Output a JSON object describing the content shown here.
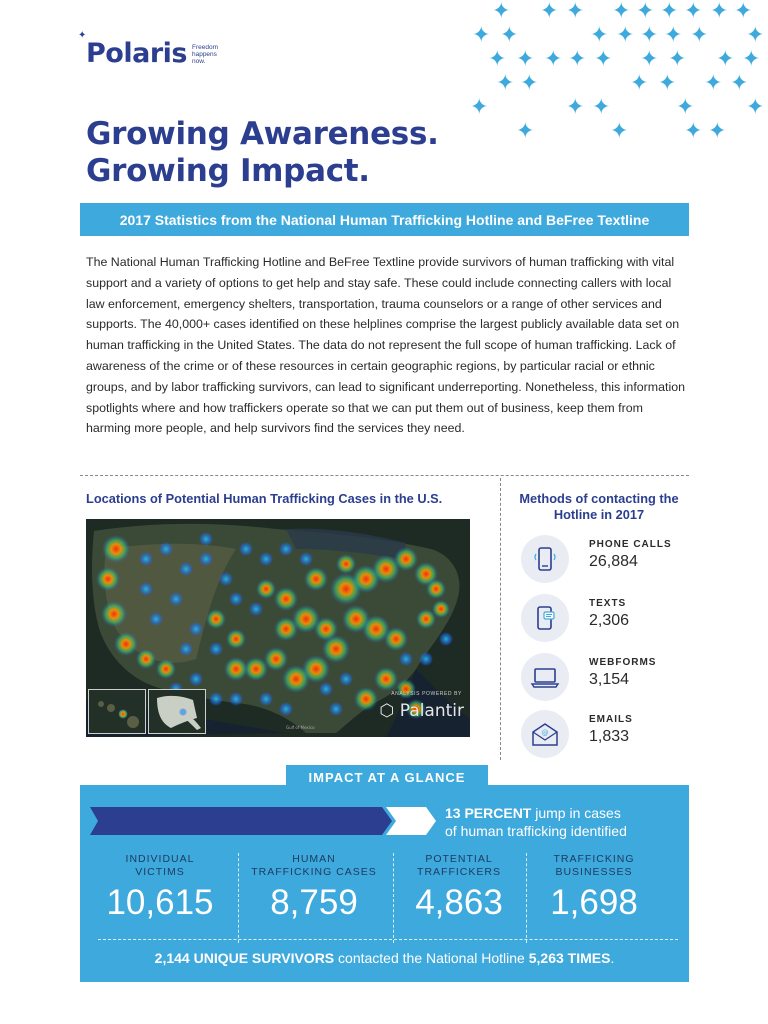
{
  "logo": {
    "word": "Polaris",
    "tagline": "Freedom happens now."
  },
  "headline": {
    "line1": "Growing Awareness.",
    "line2": "Growing Impact."
  },
  "banner": "2017 Statistics from the National Human Trafficking Hotline and BeFree Textline",
  "intro": "The National Human Trafficking Hotline and BeFree Textline provide survivors of human trafficking with vital support and a variety of options to get help and stay safe. These could include connecting callers with local law enforcement, emergency shelters, transportation, trauma counselors or a range of other services and supports. The 40,000+ cases identified on these helplines comprise the largest publicly available data set on human trafficking in the United States. The data do not represent the full scope of human trafficking. Lack of awareness of the crime or of these resources in certain geographic regions, by particular racial or ethnic groups, and by labor trafficking survivors, can lead to significant underreporting. Nonetheless, this information spotlights where and how traffickers operate so that we can put them out of business, keep them from harming more people, and help survivors find the services they need.",
  "map": {
    "title": "Locations of Potential Human Trafficking Cases in the U.S.",
    "credit_small": "ANALYSIS POWERED BY",
    "credit": "Palantir"
  },
  "methods": {
    "title": "Methods of contacting the Hotline in 2017",
    "items": [
      {
        "label": "PHONE CALLS",
        "value": "26,884",
        "icon": "phone-icon"
      },
      {
        "label": "TEXTS",
        "value": "2,306",
        "icon": "text-message-icon"
      },
      {
        "label": "WEBFORMS",
        "value": "3,154",
        "icon": "laptop-icon"
      },
      {
        "label": "EMAILS",
        "value": "1,833",
        "icon": "email-icon"
      }
    ]
  },
  "impact": {
    "tab": "IMPACT AT A GLANCE",
    "jump_bold": "13 PERCENT",
    "jump_rest": " jump in cases",
    "jump_line2": "of human trafficking identified",
    "stats": [
      {
        "label_l1": "INDIVIDUAL",
        "label_l2": "VICTIMS",
        "value": "10,615"
      },
      {
        "label_l1": "HUMAN",
        "label_l2": "TRAFFICKING CASES",
        "value": "8,759"
      },
      {
        "label_l1": "POTENTIAL",
        "label_l2": "TRAFFICKERS",
        "value": "4,863"
      },
      {
        "label_l1": "TRAFFICKING",
        "label_l2": "BUSINESSES",
        "value": "1,698"
      }
    ],
    "summary_bold1": "2,144 UNIQUE SURVIVORS",
    "summary_mid": " contacted the National Hotline ",
    "summary_bold2": "5,263 TIMES",
    "summary_end": "."
  },
  "colors": {
    "navy": "#2c3e8f",
    "accent": "#3ea9dd",
    "dark_navy": "#1e3a5f"
  }
}
